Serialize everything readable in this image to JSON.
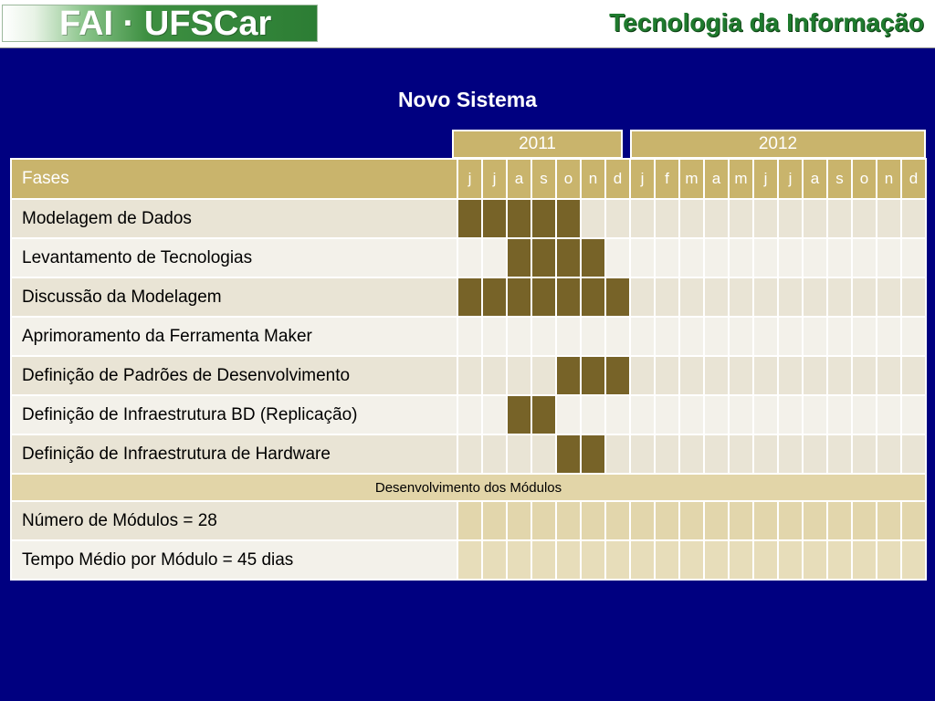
{
  "header": {
    "logo_text": "FAI · UFSCar",
    "title": "Tecnologia da Informação"
  },
  "slide": {
    "title": "Novo Sistema"
  },
  "colors": {
    "background": "#000080",
    "header_green": "#1f7a2e",
    "table_header": "#c9b46c",
    "active_cell": "#776328",
    "row_light": "#f3f1ea",
    "row_dark": "#e9e4d5",
    "band": "#e2d5a8"
  },
  "gantt": {
    "years": [
      {
        "label": "2011",
        "months": 7
      },
      {
        "label": "2012",
        "months": 12
      }
    ],
    "phase_header": "Fases",
    "months": [
      "j",
      "j",
      "a",
      "s",
      "o",
      "n",
      "d",
      "j",
      "f",
      "m",
      "a",
      "m",
      "j",
      "j",
      "a",
      "s",
      "o",
      "n",
      "d"
    ],
    "phases": [
      {
        "name": "Modelagem de Dados",
        "active": [
          0,
          1,
          2,
          3,
          4
        ]
      },
      {
        "name": "Levantamento de Tecnologias",
        "active": [
          2,
          3,
          4,
          5
        ]
      },
      {
        "name": "Discussão da Modelagem",
        "active": [
          0,
          1,
          2,
          3,
          4,
          5,
          6
        ]
      },
      {
        "name": "Aprimoramento da Ferramenta Maker",
        "active": []
      },
      {
        "name": "Definição de Padrões de Desenvolvimento",
        "active": [
          4,
          5,
          6
        ]
      },
      {
        "name": "Definição de Infraestrutura BD (Replicação)",
        "active": [
          2,
          3
        ]
      },
      {
        "name": "Definição de Infraestrutura de Hardware",
        "active": [
          4,
          5
        ]
      }
    ],
    "section_label": "Desenvolvimento dos Módulos",
    "stats": [
      "Número de Módulos = 28",
      "Tempo Médio por Módulo = 45 dias"
    ]
  }
}
